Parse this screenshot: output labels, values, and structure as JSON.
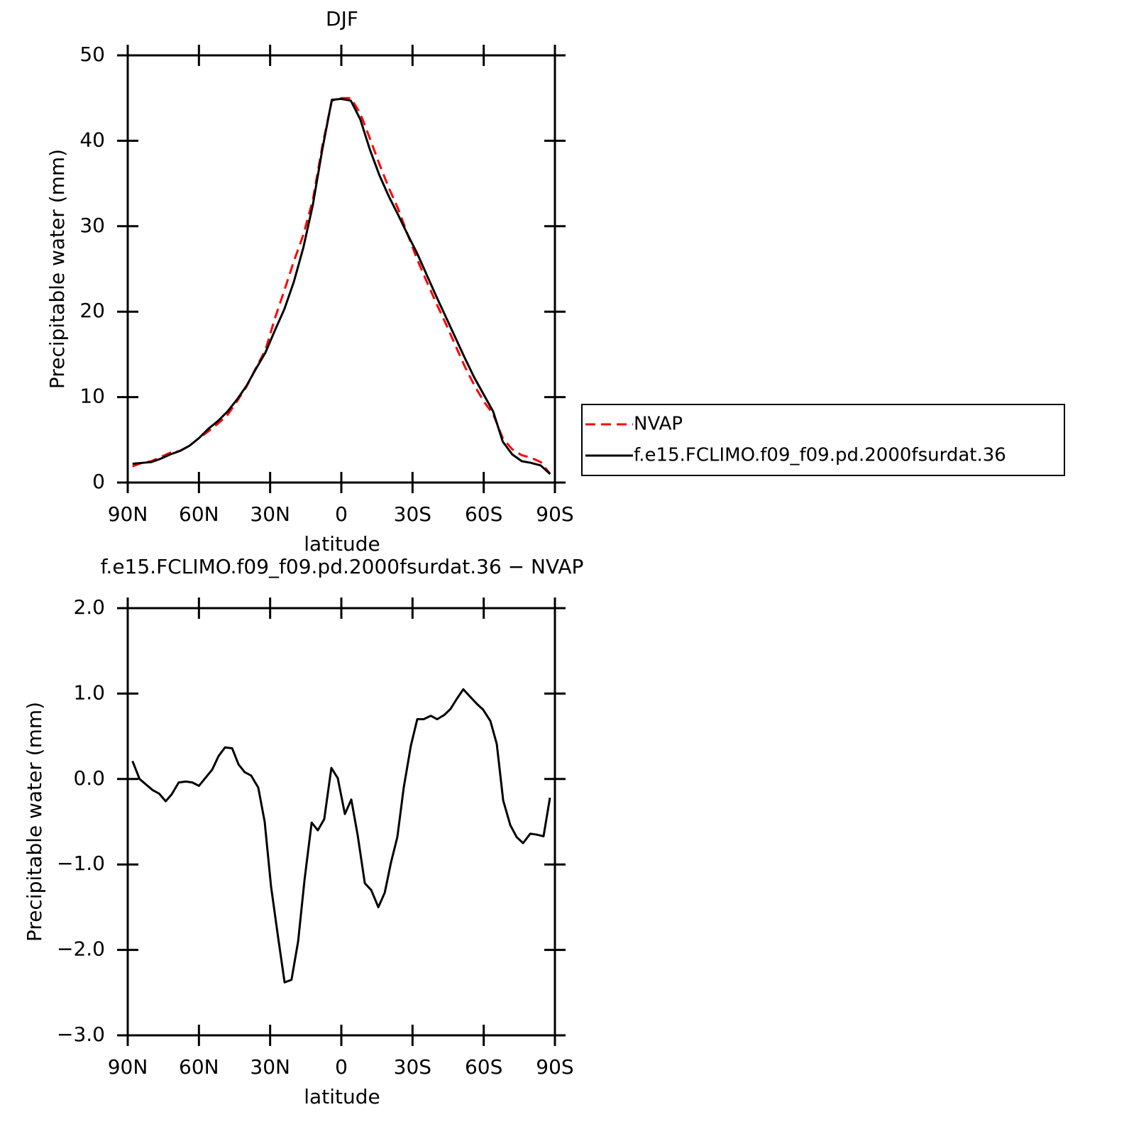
{
  "chart_data": [
    {
      "type": "line",
      "title": "DJF",
      "xlabel": "latitude",
      "ylabel": "Precipitable water (mm)",
      "x": [
        88,
        84,
        80,
        76,
        72,
        68,
        64,
        60,
        56,
        52,
        48,
        44,
        40,
        36,
        32,
        28,
        24,
        20,
        16,
        12,
        8,
        4,
        0,
        -4,
        -8,
        -12,
        -16,
        -20,
        -24,
        -28,
        -32,
        -36,
        -40,
        -44,
        -48,
        -52,
        -56,
        -60,
        -64,
        -68,
        -72,
        -76,
        -80,
        -84,
        -88
      ],
      "series": [
        {
          "name": "NVAP",
          "color": "#ff0000",
          "linestyle": "dashed",
          "values": [
            1.9,
            2.3,
            2.5,
            3.0,
            3.5,
            3.7,
            4.3,
            5.2,
            6.0,
            6.9,
            7.9,
            9.5,
            11.2,
            13.4,
            15.5,
            19.2,
            22.5,
            25.9,
            29,
            33.1,
            39.4,
            44.7,
            45,
            45,
            43.2,
            40.3,
            37.3,
            34.5,
            32,
            29,
            26.1,
            23.5,
            21,
            18.6,
            16.1,
            13.6,
            11.4,
            9.5,
            8.0,
            5.2,
            3.9,
            3.2,
            2.9,
            2.4,
            1.0
          ]
        },
        {
          "name": "f.e15.FCLIMO.f09_f09.pd.2000fsurdat.36",
          "color": "#000000",
          "linestyle": "solid",
          "values": [
            2.2,
            2.3,
            2.4,
            2.8,
            3.3,
            3.7,
            4.3,
            5.2,
            6.3,
            7.2,
            8.3,
            9.7,
            11.3,
            13.3,
            15.2,
            17.8,
            20.3,
            23.5,
            27.5,
            32.5,
            39,
            44.8,
            44.9,
            44.7,
            42.5,
            39,
            36,
            33.5,
            31.3,
            29,
            26.8,
            24.3,
            21.8,
            19.4,
            17,
            14.6,
            12.3,
            10.3,
            8.3,
            4.8,
            3.3,
            2.5,
            2.3,
            2.0,
            1.0
          ]
        }
      ],
      "xlim": [
        90,
        -90
      ],
      "xticks": [
        {
          "value": 90,
          "label": "90N"
        },
        {
          "value": 60,
          "label": "60N"
        },
        {
          "value": 30,
          "label": "30N"
        },
        0,
        {
          "value": -30,
          "label": "30S"
        },
        {
          "value": -60,
          "label": "60S"
        },
        {
          "value": -90,
          "label": "90S"
        }
      ],
      "ylim": [
        0,
        50
      ],
      "yticks": [
        0,
        10,
        20,
        30,
        40,
        50
      ],
      "legend": "right"
    },
    {
      "type": "line",
      "title": "f.e15.FCLIMO.f09_f09.pd.2000fsurdat.36 − NVAP",
      "xlabel": "latitude",
      "ylabel": "Precipitable water (mm)",
      "x": [
        88,
        85,
        79.5,
        76.8,
        74,
        71.5,
        68.5,
        65.5,
        62.8,
        60,
        54.4,
        51.7,
        49,
        46,
        43.3,
        40.7,
        38,
        35,
        32.3,
        29.6,
        26.6,
        23.9,
        21,
        18.2,
        15.5,
        12.5,
        9.9,
        7.2,
        4.2,
        1.5,
        -1.5,
        -4.2,
        -6.9,
        -9.9,
        -12.6,
        -15.6,
        -18.3,
        -20.9,
        -23.6,
        -26.3,
        -29.3,
        -32,
        -34.7,
        -37.7,
        -40.4,
        -43.4,
        -46,
        -48.7,
        -51.4,
        -54.4,
        -57.1,
        -59.8,
        -62.8,
        -65.5,
        -68.2,
        -71.2,
        -73.9,
        -76.6,
        -79.6,
        -82.2,
        -85.2,
        -87.9
      ],
      "values": [
        0.21,
        0.0,
        -0.13,
        -0.17,
        -0.26,
        -0.18,
        -0.04,
        -0.03,
        -0.04,
        -0.08,
        0.11,
        0.27,
        0.37,
        0.36,
        0.17,
        0.08,
        0.04,
        -0.1,
        -0.5,
        -1.26,
        -1.86,
        -2.38,
        -2.35,
        -1.9,
        -1.18,
        -0.51,
        -0.6,
        -0.47,
        0.13,
        0.01,
        -0.41,
        -0.24,
        -0.66,
        -1.22,
        -1.3,
        -1.5,
        -1.33,
        -0.98,
        -0.68,
        -0.1,
        0.39,
        0.7,
        0.7,
        0.74,
        0.7,
        0.75,
        0.82,
        0.94,
        1.05,
        0.96,
        0.88,
        0.81,
        0.68,
        0.41,
        -0.25,
        -0.54,
        -0.68,
        -0.75,
        -0.64,
        -0.65,
        -0.67,
        -0.22
      ],
      "color": "#000000",
      "xlim": [
        90,
        -90
      ],
      "xticks": [
        {
          "value": 90,
          "label": "90N"
        },
        {
          "value": 60,
          "label": "60N"
        },
        {
          "value": 30,
          "label": "30N"
        },
        0,
        {
          "value": -30,
          "label": "30S"
        },
        {
          "value": -60,
          "label": "60S"
        },
        {
          "value": -90,
          "label": "90S"
        }
      ],
      "ylim": [
        -3,
        2
      ],
      "yticks": [
        {
          "value": -3,
          "label": "−3.0"
        },
        {
          "value": -2,
          "label": "−2.0"
        },
        {
          "value": -1,
          "label": "−1.0"
        },
        {
          "value": 0,
          "label": "0.0"
        },
        {
          "value": 1,
          "label": "1.0"
        },
        {
          "value": 2,
          "label": "2.0"
        }
      ]
    }
  ]
}
